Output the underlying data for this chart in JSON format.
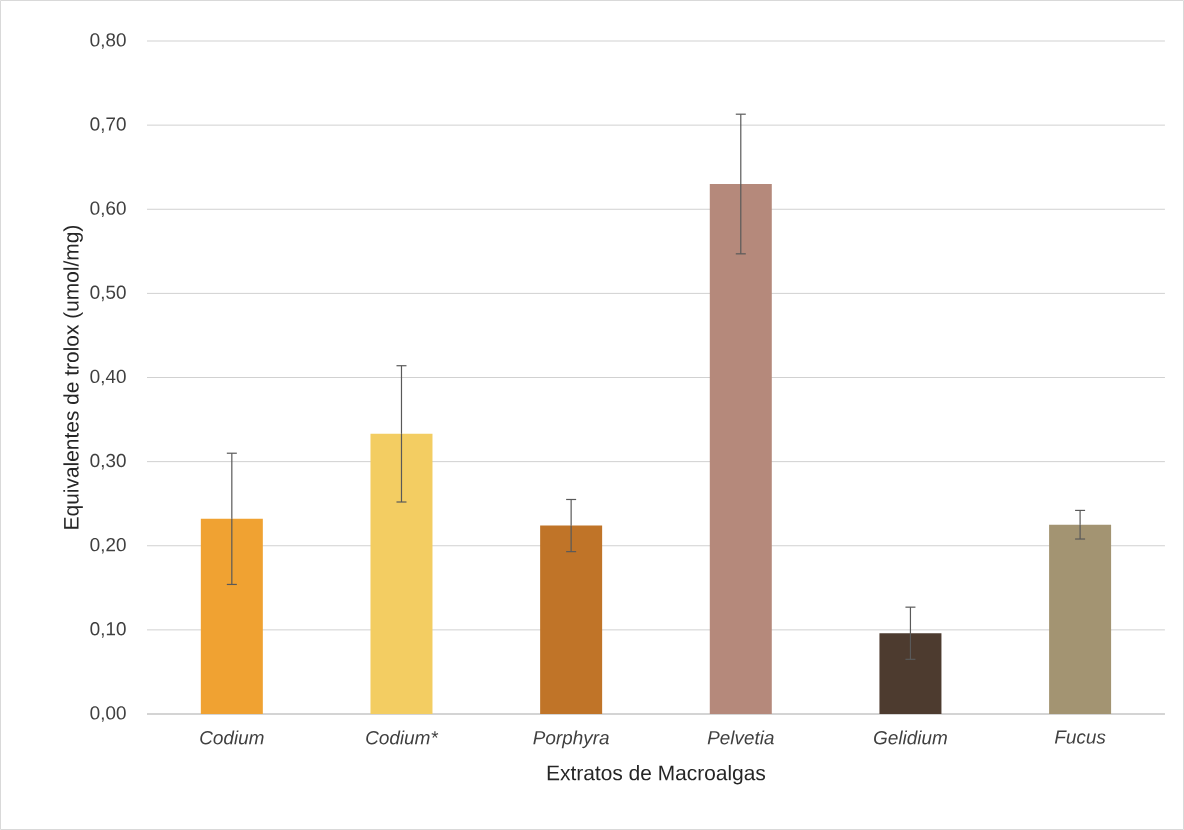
{
  "chart_data": {
    "type": "bar",
    "xlabel": "Extratos de Macroalgas",
    "ylabel": "Equivalentes de trolox (umol/mg)",
    "categories": [
      "Codium",
      "Codium*",
      "Porphyra",
      "Pelvetia",
      "Gelidium",
      "Fucus"
    ],
    "values": [
      0.232,
      0.333,
      0.224,
      0.63,
      0.096,
      0.225
    ],
    "errors": [
      0.078,
      0.081,
      0.031,
      0.083,
      0.031,
      0.017
    ],
    "colors": [
      "#f0a232",
      "#f3cd62",
      "#c07428",
      "#b5897b",
      "#4d3b2f",
      "#a39472"
    ],
    "ylim": [
      0,
      0.8
    ],
    "yticks": [
      {
        "value": 0,
        "label": "0,00"
      },
      {
        "value": 0.1,
        "label": "0,10"
      },
      {
        "value": 0.2,
        "label": "0,20"
      },
      {
        "value": 0.3,
        "label": "0,30"
      },
      {
        "value": 0.4,
        "label": "0,40"
      },
      {
        "value": 0.5,
        "label": "0,50"
      },
      {
        "value": 0.6,
        "label": "0,60"
      },
      {
        "value": 0.7,
        "label": "0,70"
      },
      {
        "value": 0.8,
        "label": "0,80"
      }
    ],
    "grid": "y"
  }
}
